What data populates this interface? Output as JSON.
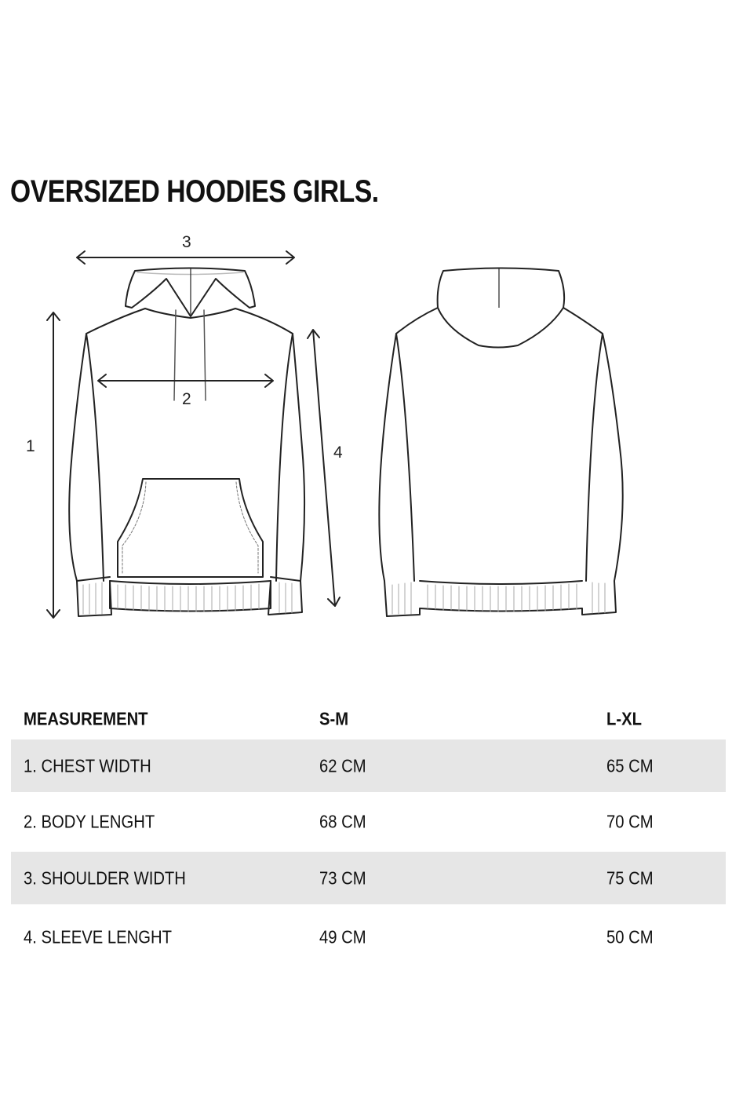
{
  "title": "OVERSIZED HOODIES GIRLS.",
  "diagram": {
    "labels": [
      "1",
      "2",
      "3",
      "4"
    ]
  },
  "table": {
    "headers": [
      "MEASUREMENT",
      "S-M",
      "L-XL"
    ],
    "rows": [
      [
        "1. CHEST WIDTH",
        "62 CM",
        "65 CM"
      ],
      [
        "2. BODY LENGHT",
        "68 CM",
        "70 CM"
      ],
      [
        "3. SHOULDER WIDTH",
        "73 CM",
        "75 CM"
      ],
      [
        "4. SLEEVE LENGHT",
        "49 CM",
        "50 CM"
      ]
    ],
    "stripe_color": "#e6e6e6"
  }
}
